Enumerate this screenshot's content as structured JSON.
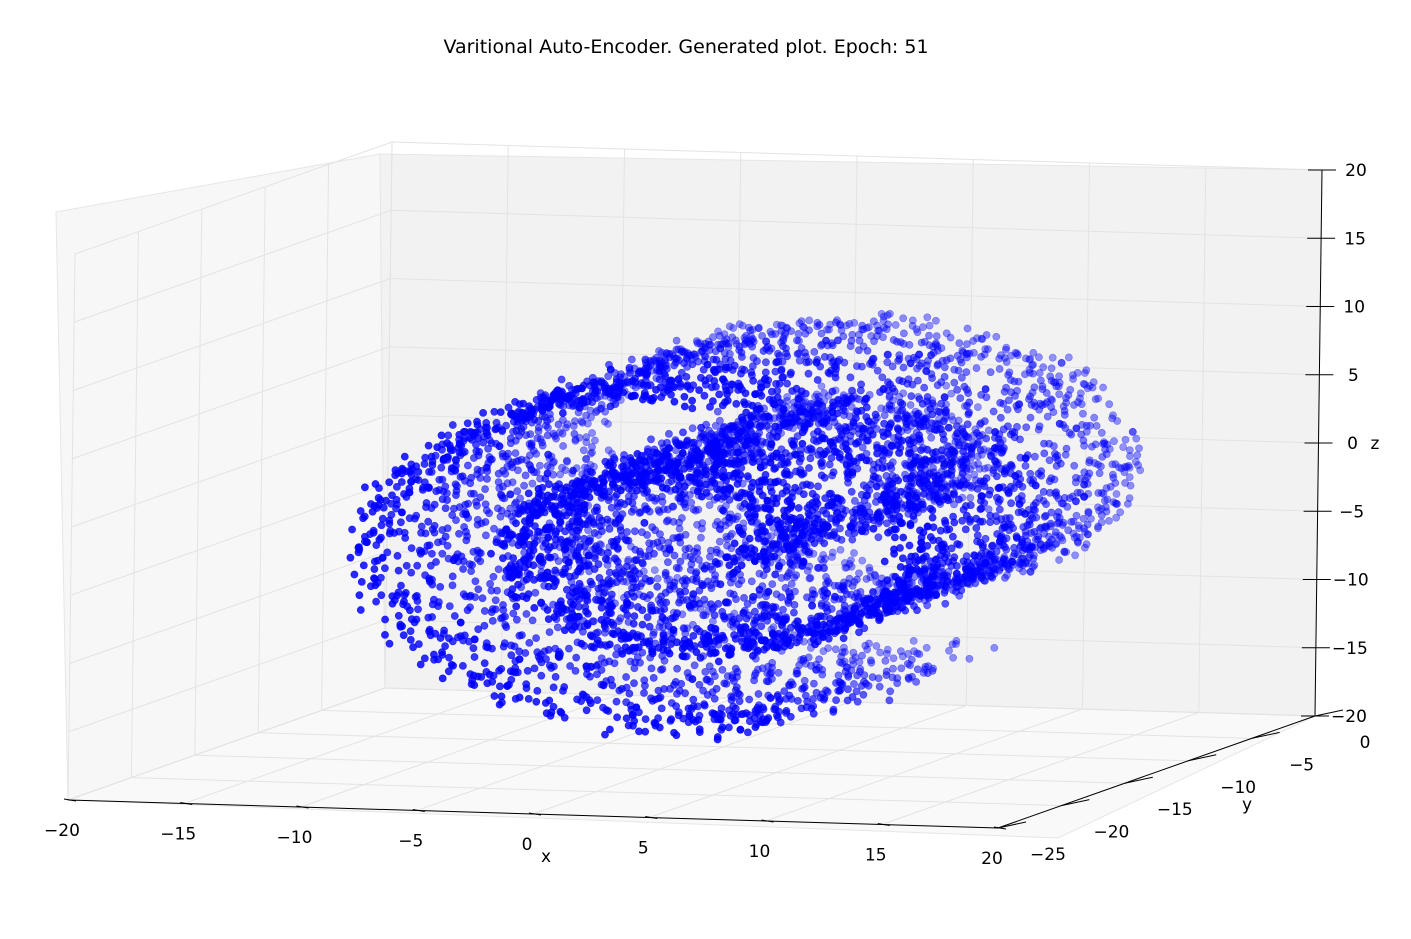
{
  "chart_data": {
    "type": "scatter",
    "title": "Varitional Auto-Encoder. Generated plot. Epoch: 51",
    "xlabel": "x",
    "ylabel": "y",
    "zlabel": "z",
    "xlim": [
      -20,
      20
    ],
    "ylim": [
      -25,
      0
    ],
    "zlim": [
      -20,
      20
    ],
    "x_ticks": [
      -20,
      -15,
      -10,
      -5,
      0,
      5,
      10,
      15,
      20
    ],
    "y_ticks": [
      -25,
      -20,
      -15,
      -10,
      -5,
      0
    ],
    "z_ticks": [
      -20,
      -15,
      -10,
      -5,
      0,
      5,
      10,
      15,
      20
    ],
    "x_tick_labels": [
      "−20",
      "−15",
      "−10",
      "−5",
      "0",
      "5",
      "10",
      "15",
      "20"
    ],
    "y_tick_labels": [
      "−25",
      "−20",
      "−15",
      "−10",
      "−5",
      "0"
    ],
    "z_tick_labels": [
      "−20",
      "−15",
      "−10",
      "−5",
      "0",
      "5",
      "10",
      "15",
      "20"
    ],
    "grid": true,
    "projection": "3d",
    "marker_color": "#0000ff",
    "shape": "swiss roll spiral (3D scatter of generated samples)",
    "series": [
      {
        "spiral_t_range": [
          3,
          15
        ],
        "y_range": [
          -22,
          -3
        ],
        "point_count": 6000
      }
    ]
  }
}
